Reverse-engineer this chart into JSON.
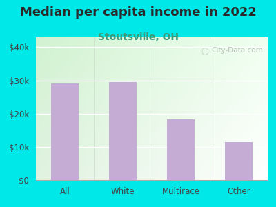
{
  "title": "Median per capita income in 2022",
  "subtitle": "Stoutsville, OH",
  "categories": [
    "All",
    "White",
    "Multirace",
    "Other"
  ],
  "values": [
    29000,
    29500,
    18200,
    11500
  ],
  "bar_color": "#c4acd4",
  "outer_bg": "#00e8e8",
  "title_color": "#2a2a2a",
  "subtitle_color": "#3a9a7a",
  "yticks": [
    0,
    10000,
    20000,
    30000,
    40000
  ],
  "ytick_labels": [
    "$0",
    "$10k",
    "$20k",
    "$30k",
    "$40k"
  ],
  "ylim": [
    0,
    43000
  ],
  "watermark": "City-Data.com",
  "title_fontsize": 13,
  "subtitle_fontsize": 10,
  "tick_fontsize": 8.5
}
